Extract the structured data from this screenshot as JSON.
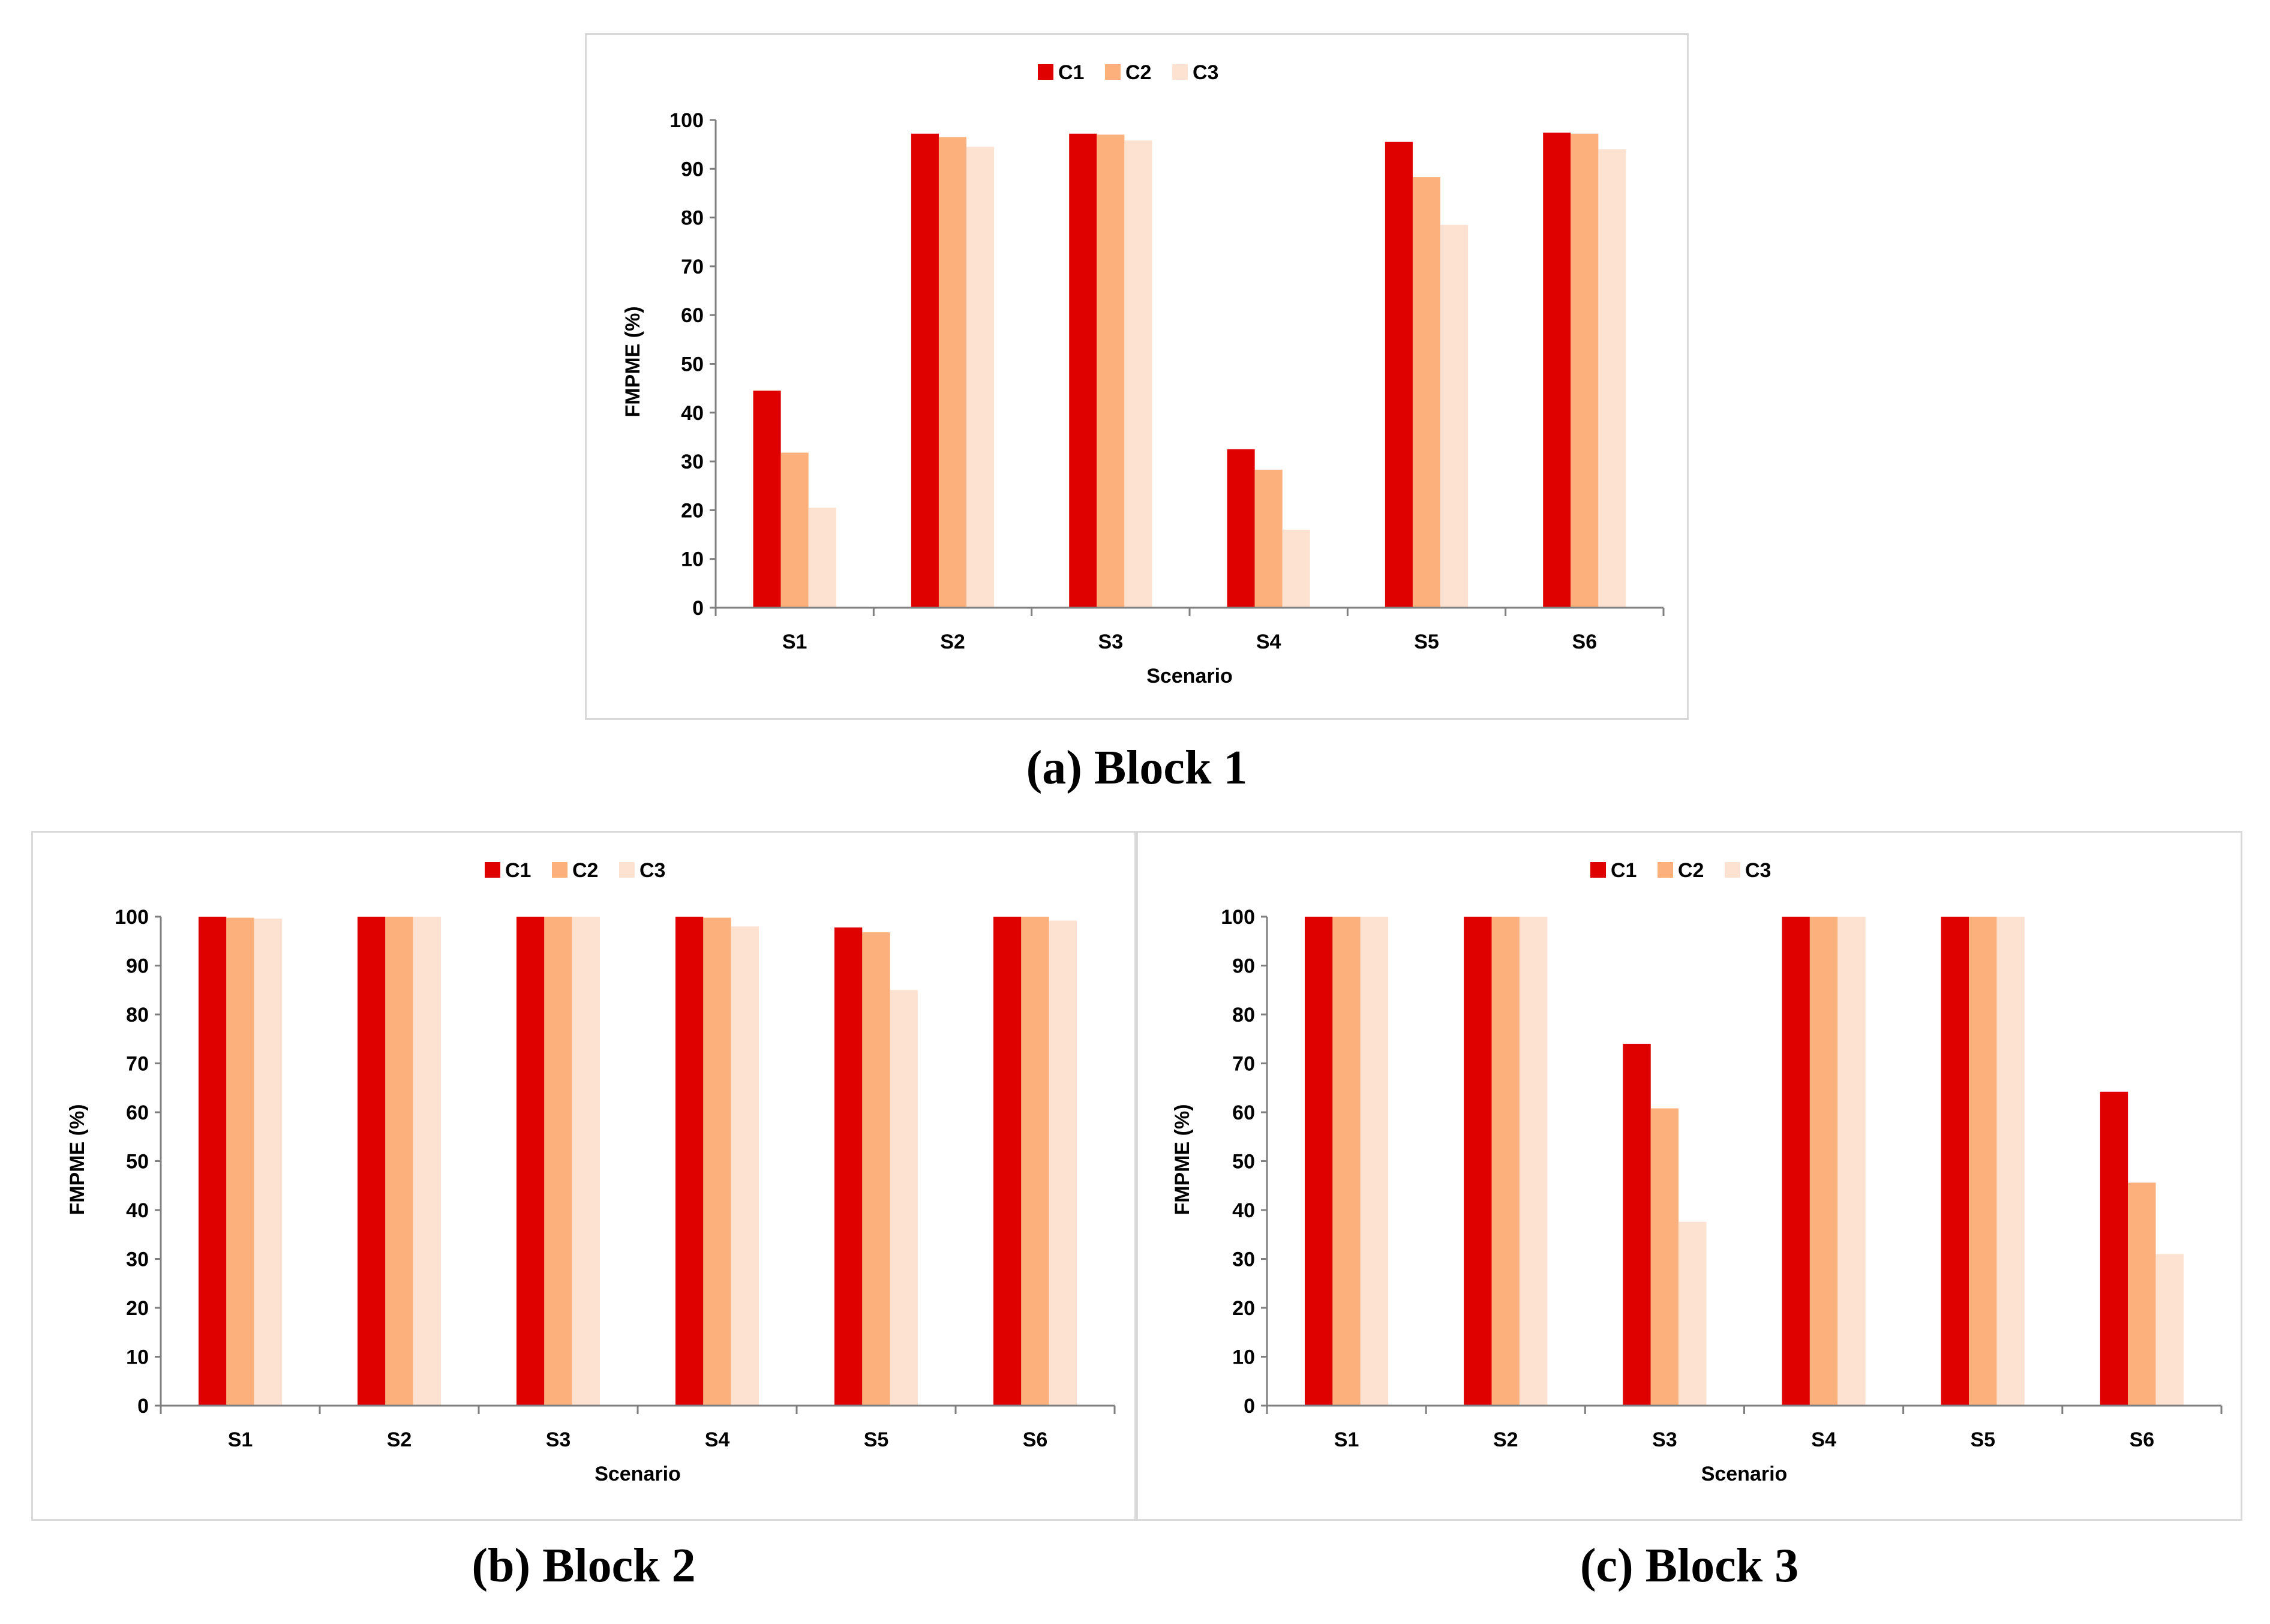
{
  "colors": {
    "C1": "#df0000",
    "C2": "#fcb07c",
    "C3": "#fde2d1"
  },
  "captions": [
    "(a) Block 1",
    "(b) Block 2",
    "(c) Block 3"
  ],
  "chart_data": [
    {
      "type": "bar",
      "categories": [
        "S1",
        "S2",
        "S3",
        "S4",
        "S5",
        "S6"
      ],
      "series": [
        {
          "name": "C1",
          "values": [
            44.5,
            97.2,
            97.2,
            32.5,
            95.5,
            97.4
          ]
        },
        {
          "name": "C2",
          "values": [
            31.8,
            96.5,
            97.0,
            28.3,
            88.3,
            97.2
          ]
        },
        {
          "name": "C3",
          "values": [
            20.5,
            94.5,
            95.8,
            16.0,
            78.5,
            94.0
          ]
        }
      ],
      "title": "",
      "xlabel": "Scenario",
      "ylabel": "FMPME (%)",
      "ylim": [
        0,
        100
      ],
      "yticks": [
        0,
        10,
        20,
        30,
        40,
        50,
        60,
        70,
        80,
        90,
        100
      ],
      "legend": "top-center"
    },
    {
      "type": "bar",
      "categories": [
        "S1",
        "S2",
        "S3",
        "S4",
        "S5",
        "S6"
      ],
      "series": [
        {
          "name": "C1",
          "values": [
            100,
            100,
            100,
            100,
            97.8,
            100
          ]
        },
        {
          "name": "C2",
          "values": [
            99.8,
            100,
            100,
            99.8,
            96.8,
            100
          ]
        },
        {
          "name": "C3",
          "values": [
            99.6,
            100,
            100,
            98.0,
            85.0,
            99.2
          ]
        }
      ],
      "title": "",
      "xlabel": "Scenario",
      "ylabel": "FMPME (%)",
      "ylim": [
        0,
        100
      ],
      "yticks": [
        0,
        10,
        20,
        30,
        40,
        50,
        60,
        70,
        80,
        90,
        100
      ],
      "legend": "top-center"
    },
    {
      "type": "bar",
      "categories": [
        "S1",
        "S2",
        "S3",
        "S4",
        "S5",
        "S6"
      ],
      "series": [
        {
          "name": "C1",
          "values": [
            100,
            100,
            74.0,
            100,
            100,
            64.2
          ]
        },
        {
          "name": "C2",
          "values": [
            100,
            100,
            60.8,
            100,
            100,
            45.6
          ]
        },
        {
          "name": "C3",
          "values": [
            100,
            100,
            37.6,
            100,
            100,
            31.0
          ]
        }
      ],
      "title": "",
      "xlabel": "Scenario",
      "ylabel": "FMPME (%)",
      "ylim": [
        0,
        100
      ],
      "yticks": [
        0,
        10,
        20,
        30,
        40,
        50,
        60,
        70,
        80,
        90,
        100
      ],
      "legend": "top-center"
    }
  ]
}
